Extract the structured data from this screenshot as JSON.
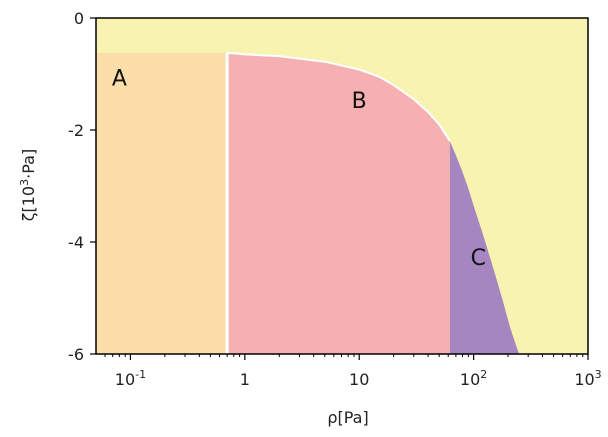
{
  "chart_data": {
    "type": "area",
    "xscale": "log",
    "xlim": [
      0.05,
      1000
    ],
    "ylim": [
      -6,
      0
    ],
    "xlabel": "ρ[Pa]",
    "ylabel_base": "ζ[10",
    "ylabel_sup": "3",
    "ylabel_tail": "·Pa]",
    "xticks": [
      {
        "value": 0.1,
        "base": "10",
        "sup": "-1"
      },
      {
        "value": 1,
        "base": "1",
        "sup": ""
      },
      {
        "value": 10,
        "base": "10",
        "sup": ""
      },
      {
        "value": 100,
        "base": "10",
        "sup": "2"
      },
      {
        "value": 1000,
        "base": "10",
        "sup": "3"
      }
    ],
    "yticks": [
      0,
      -2,
      -4,
      -6
    ],
    "ytick_labels": [
      "0",
      "-2",
      "-4",
      "-6"
    ],
    "colors": {
      "background": "#f8f3b0",
      "A": "#fbdea9",
      "B": "#f6b0b2",
      "C": "#a586c1",
      "separator": "#ffffff"
    },
    "regions": [
      {
        "label": "A",
        "x_from": 0.05,
        "x_to": 0.7,
        "label_at": [
          0.08,
          -1.1
        ]
      },
      {
        "label": "B",
        "x_from": 0.7,
        "x_to": 62,
        "label_at": [
          10,
          -1.5
        ]
      },
      {
        "label": "C",
        "x_from": 62,
        "x_to": 250,
        "label_at": [
          110,
          -4.3
        ]
      }
    ],
    "boundary": [
      [
        0.05,
        -0.62
      ],
      [
        0.7,
        -0.62
      ],
      [
        1,
        -0.65
      ],
      [
        2,
        -0.68
      ],
      [
        5,
        -0.78
      ],
      [
        10,
        -0.92
      ],
      [
        15,
        -1.05
      ],
      [
        20,
        -1.2
      ],
      [
        30,
        -1.45
      ],
      [
        40,
        -1.68
      ],
      [
        50,
        -1.9
      ],
      [
        60,
        -2.15
      ],
      [
        62,
        -2.2
      ],
      [
        70,
        -2.45
      ],
      [
        80,
        -2.75
      ],
      [
        90,
        -3.05
      ],
      [
        100,
        -3.35
      ],
      [
        120,
        -3.85
      ],
      [
        150,
        -4.5
      ],
      [
        180,
        -5.05
      ],
      [
        210,
        -5.55
      ],
      [
        240,
        -5.9
      ],
      [
        250,
        -6
      ]
    ]
  }
}
